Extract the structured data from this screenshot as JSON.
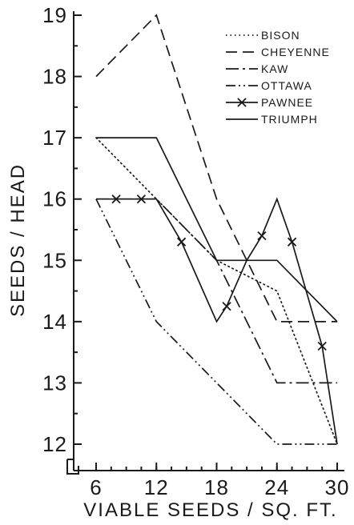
{
  "chart_data": {
    "type": "line",
    "title": "",
    "xlabel": "VIABLE SEEDS / SQ. FT.",
    "ylabel": "SEEDS / HEAD",
    "xlim": [
      4.5,
      31
    ],
    "ylim": [
      11.6,
      19.1
    ],
    "x_ticks": [
      6,
      12,
      18,
      24,
      30
    ],
    "y_ticks": [
      12,
      13,
      14,
      15,
      16,
      17,
      18,
      19
    ],
    "grid": false,
    "legend_position": "top-right",
    "series": [
      {
        "name": "BISON",
        "style": "dotted",
        "points": [
          [
            6,
            17.0
          ],
          [
            12,
            16.0
          ],
          [
            18,
            15.0
          ],
          [
            24,
            14.5
          ],
          [
            30,
            12.0
          ]
        ]
      },
      {
        "name": "CHEYENNE",
        "style": "dashed",
        "points": [
          [
            6,
            18.0
          ],
          [
            12,
            19.0
          ],
          [
            18,
            16.0
          ],
          [
            24,
            14.0
          ],
          [
            30,
            14.0
          ]
        ]
      },
      {
        "name": "KAW",
        "style": "dash-dot",
        "points": [
          [
            6,
            16.0
          ],
          [
            12,
            16.0
          ],
          [
            18,
            15.0
          ],
          [
            24,
            13.0
          ],
          [
            30,
            13.0
          ]
        ]
      },
      {
        "name": "OTTAWA",
        "style": "dash-dot-dot",
        "points": [
          [
            6,
            16.0
          ],
          [
            12,
            14.0
          ],
          [
            18,
            13.0
          ],
          [
            24,
            12.0
          ],
          [
            30,
            12.0
          ]
        ]
      },
      {
        "name": "PAWNEE",
        "style": "solid-x",
        "points": [
          [
            6,
            16.0
          ],
          [
            8,
            16.0
          ],
          [
            10.5,
            16.0
          ],
          [
            12,
            16.0
          ],
          [
            14.5,
            15.3
          ],
          [
            18,
            14.0
          ],
          [
            19,
            14.25
          ],
          [
            21,
            15.0
          ],
          [
            22.5,
            15.4
          ],
          [
            24,
            16.0
          ],
          [
            25.5,
            15.3
          ],
          [
            28.5,
            13.6
          ],
          [
            30,
            12.0
          ]
        ],
        "marked_points": [
          [
            8,
            16.0
          ],
          [
            10.5,
            16.0
          ],
          [
            14.5,
            15.3
          ],
          [
            19,
            14.25
          ],
          [
            22.5,
            15.4
          ],
          [
            25.5,
            15.3
          ],
          [
            28.5,
            13.6
          ]
        ]
      },
      {
        "name": "TRIUMPH",
        "style": "solid",
        "points": [
          [
            6,
            17.0
          ],
          [
            12,
            17.0
          ],
          [
            18,
            15.0
          ],
          [
            24,
            15.0
          ],
          [
            30,
            14.0
          ]
        ]
      }
    ]
  }
}
